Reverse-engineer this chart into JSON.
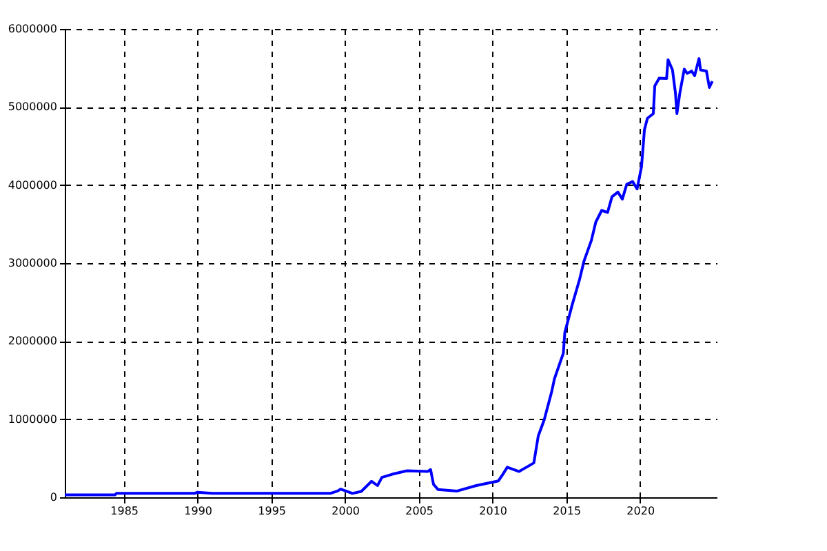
{
  "chart_data": {
    "type": "line",
    "xlim": [
      1981,
      2025.2
    ],
    "ylim": [
      0,
      6000000
    ],
    "xticks": [
      1985,
      1990,
      1995,
      2000,
      2005,
      2010,
      2015,
      2020
    ],
    "yticks": [
      0,
      1000000,
      2000000,
      3000000,
      4000000,
      5000000,
      6000000
    ],
    "grid": true,
    "series": [
      {
        "color": "#0000ff",
        "x": [
          1981,
          1984.4,
          1984.5,
          1989.8,
          1990,
          1991,
          1999,
          1999.5,
          1999.7,
          2000.5,
          2001.1,
          2001.8,
          2002.2,
          2002.5,
          2003.2,
          2004.2,
          2005.6,
          2005.8,
          2006.0,
          2006.3,
          2007.6,
          2008.9,
          2010.4,
          2010.7,
          2011.0,
          2011.8,
          2012.3,
          2012.8,
          2013.1,
          2013.5,
          2014.0,
          2014.2,
          2014.8,
          2014.9,
          2015.4,
          2015.9,
          2016.2,
          2016.7,
          2017.0,
          2017.4,
          2017.8,
          2018.1,
          2018.5,
          2018.8,
          2019.1,
          2019.5,
          2019.8,
          2020.1,
          2020.3,
          2020.5,
          2020.9,
          2021.0,
          2021.3,
          2021.8,
          2021.9,
          2022.2,
          2022.4,
          2022.5,
          2022.7,
          2023.0,
          2023.2,
          2023.5,
          2023.7,
          2024.0,
          2024.1,
          2024.5,
          2024.7,
          2024.9
        ],
        "values": [
          30000,
          30000,
          50000,
          50000,
          65000,
          50000,
          50000,
          80000,
          105000,
          50000,
          75000,
          205000,
          150000,
          255000,
          295000,
          340000,
          330000,
          355000,
          165000,
          100000,
          80000,
          150000,
          210000,
          295000,
          385000,
          330000,
          385000,
          440000,
          785000,
          990000,
          1345000,
          1520000,
          1845000,
          2110000,
          2465000,
          2790000,
          3025000,
          3290000,
          3525000,
          3675000,
          3650000,
          3850000,
          3910000,
          3820000,
          4010000,
          4045000,
          3950000,
          4235000,
          4710000,
          4855000,
          4915000,
          5270000,
          5370000,
          5365000,
          5605000,
          5475000,
          5180000,
          4915000,
          5180000,
          5485000,
          5430000,
          5460000,
          5400000,
          5620000,
          5475000,
          5460000,
          5250000,
          5330000
        ]
      }
    ]
  }
}
